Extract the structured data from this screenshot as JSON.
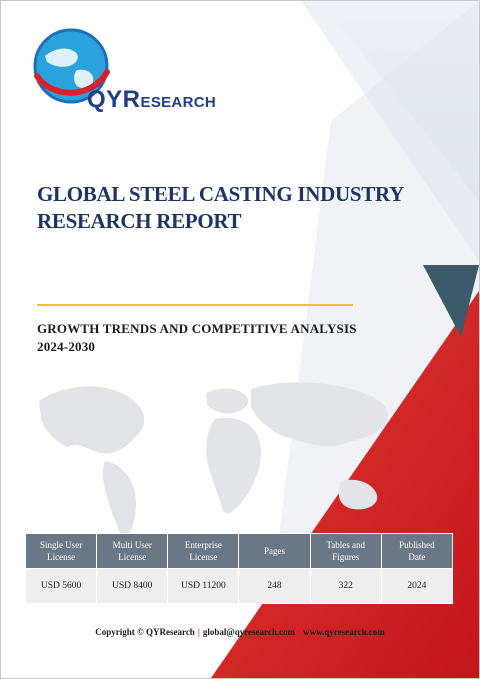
{
  "brand": {
    "logo_text_big": "QYR",
    "logo_text_small": "ESEARCH"
  },
  "report": {
    "title_line1": "GLOBAL STEEL CASTING INDUSTRY",
    "title_line2": "RESEARCH REPORT",
    "subtitle_line1": "GROWTH TRENDS AND COMPETITIVE ANALYSIS",
    "subtitle_line2": "2024-2030"
  },
  "table": {
    "headers": [
      [
        "Single User",
        "License"
      ],
      [
        "Multi User",
        "License"
      ],
      [
        "Enterprise",
        "License"
      ],
      [
        "Pages",
        ""
      ],
      [
        "Tables and",
        "Figures"
      ],
      [
        "Published",
        "Date"
      ]
    ],
    "values": [
      "USD 5600",
      "USD 8400",
      "USD 11200",
      "248",
      "322",
      "2024"
    ]
  },
  "footer": {
    "copyright": "Copyright © QYResearch",
    "email": "global@qyresearch.com",
    "website": "www.qyresearch.com",
    "separator": "|"
  },
  "colors": {
    "brand_blue": "#1f3f87",
    "accent_red": "#d8222a",
    "gold": "#e8c33a",
    "table_header": "#6c7785"
  }
}
